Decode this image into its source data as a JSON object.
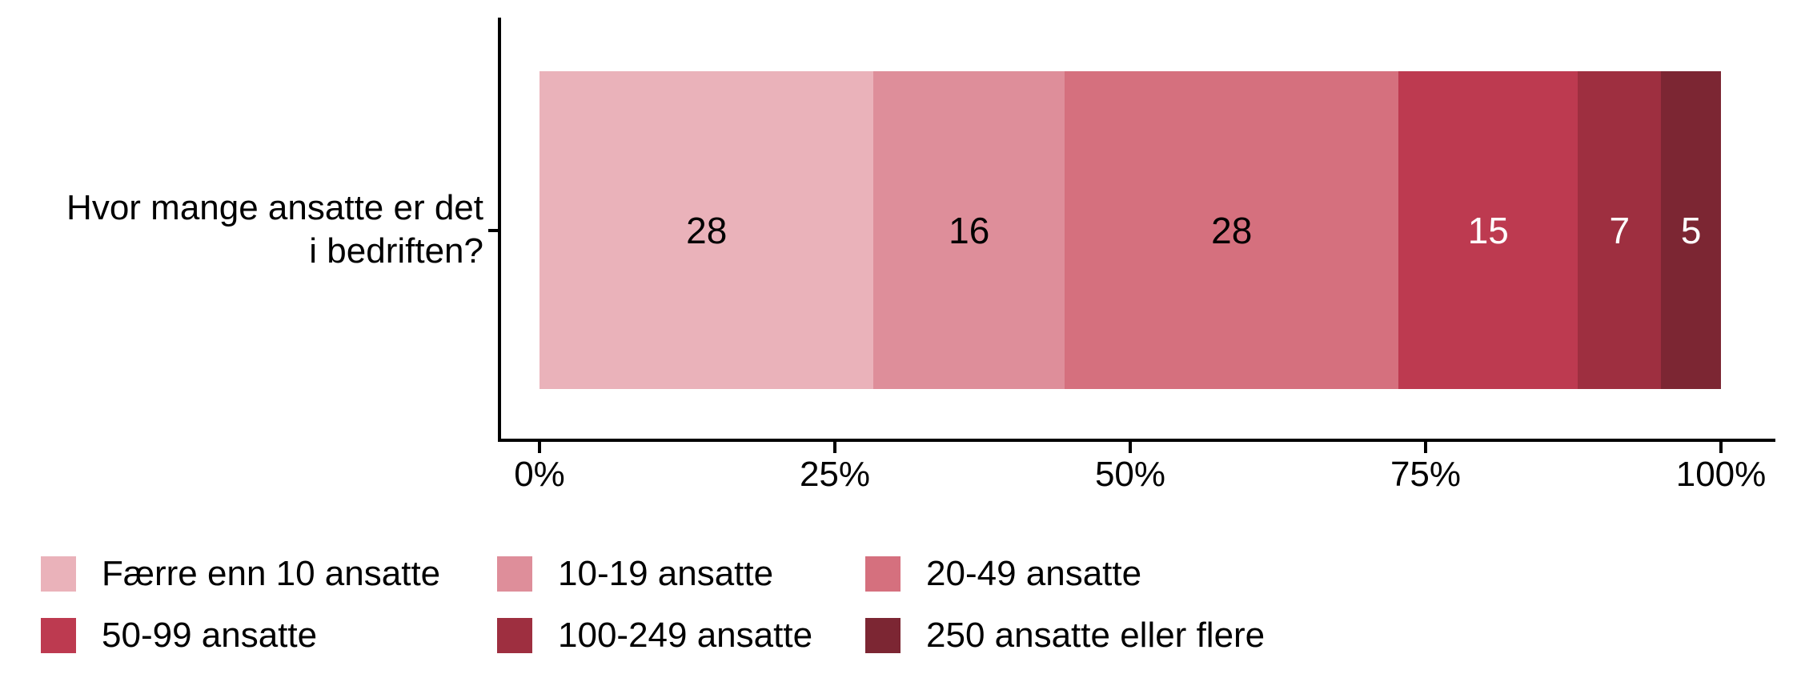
{
  "chart_data": {
    "type": "bar",
    "subtype": "stacked-horizontal-100pct",
    "title": "",
    "question_label_lines": [
      "Hvor mange ansatte er det",
      "i bedriften?"
    ],
    "series": [
      {
        "name": "Færre enn 10 ansatte",
        "value": 28,
        "color": "#eab2ba",
        "label_color": "#000000"
      },
      {
        "name": "10-19 ansatte",
        "value": 16,
        "color": "#de8e9a",
        "label_color": "#000000"
      },
      {
        "name": "20-49 ansatte",
        "value": 28,
        "color": "#d5707e",
        "label_color": "#000000"
      },
      {
        "name": "50-99 ansatte",
        "value": 15,
        "color": "#bd3a50",
        "label_color": "#ffffff"
      },
      {
        "name": "100-249 ansatte",
        "value": 7,
        "color": "#9e2f40",
        "label_color": "#ffffff"
      },
      {
        "name": "250 ansatte eller flere",
        "value": 5,
        "color": "#7c2633",
        "label_color": "#ffffff"
      }
    ],
    "x_axis": {
      "tick_labels": [
        "0%",
        "25%",
        "50%",
        "75%",
        "100%"
      ],
      "tick_values": [
        0,
        25,
        50,
        75,
        100
      ],
      "range": [
        0,
        100
      ],
      "grid": false
    },
    "legend_position": "bottom-left",
    "legend_rows": 2,
    "legend_columns": 3,
    "axis_color": "#000000",
    "background_color": "#ffffff"
  }
}
